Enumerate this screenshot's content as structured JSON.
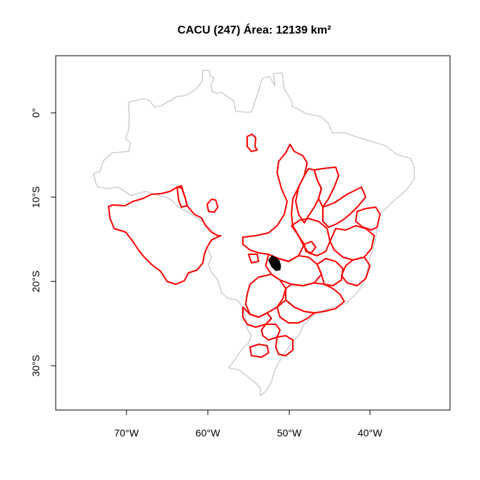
{
  "title": "CACU (247) Área: 12139 km²",
  "axes": {
    "x_ticks": [
      "70°W",
      "60°W",
      "50°W",
      "40°W"
    ],
    "y_ticks": [
      "0°",
      "10°S",
      "20°S",
      "30°S"
    ]
  },
  "colors": {
    "country_outline": "#bdbdbd",
    "basin_outline": "#ff0000",
    "highlight": "#000000",
    "frame": "#000000"
  }
}
